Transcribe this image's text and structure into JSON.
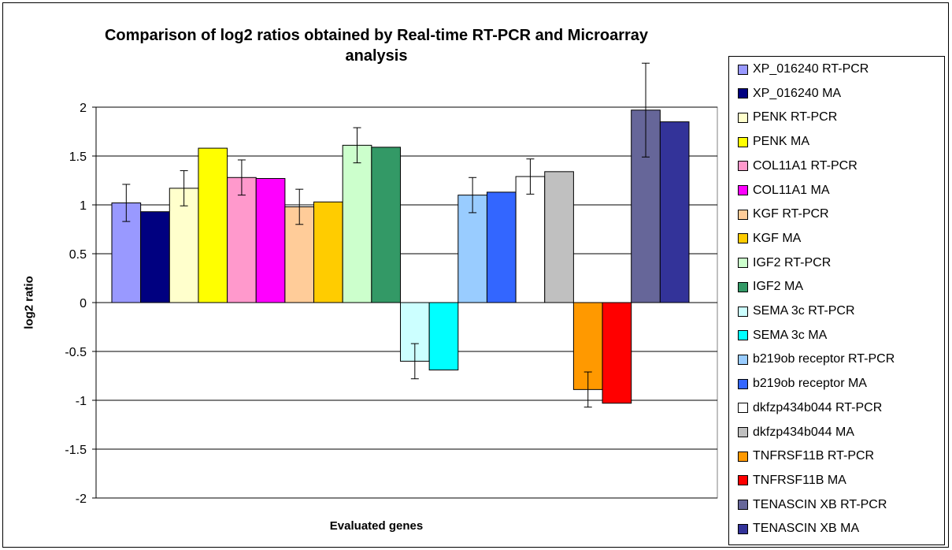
{
  "chart_data": {
    "type": "bar",
    "title": "Comparison of log2 ratios obtained by Real-time RT-PCR and Microarray analysis",
    "xlabel": "Evaluated genes",
    "ylabel": "log2 ratio",
    "ylim": [
      -2,
      2
    ],
    "yticks": [
      2,
      1.5,
      1,
      0.5,
      0,
      -0.5,
      -1,
      -1.5,
      -2
    ],
    "grid": true,
    "legend_position": "right",
    "series": [
      {
        "name": "XP_016240 RT-PCR",
        "value": 1.02,
        "error": 0.19,
        "color": "#9999ff"
      },
      {
        "name": "XP_016240 MA",
        "value": 0.93,
        "color": "#000080"
      },
      {
        "name": "PENK RT-PCR",
        "value": 1.17,
        "error": 0.18,
        "color": "#ffffcc"
      },
      {
        "name": "PENK MA",
        "value": 1.58,
        "color": "#ffff00"
      },
      {
        "name": "COL11A1 RT-PCR",
        "value": 1.28,
        "error": 0.18,
        "color": "#ff99cc"
      },
      {
        "name": "COL11A1 MA",
        "value": 1.27,
        "color": "#ff00ff"
      },
      {
        "name": "KGF RT-PCR",
        "value": 0.98,
        "error": 0.18,
        "color": "#ffcc99"
      },
      {
        "name": "KGF MA",
        "value": 1.03,
        "color": "#ffcc00"
      },
      {
        "name": "IGF2 RT-PCR",
        "value": 1.61,
        "error": 0.18,
        "color": "#ccffcc"
      },
      {
        "name": "IGF2 MA",
        "value": 1.59,
        "color": "#339966"
      },
      {
        "name": "SEMA 3c RT-PCR",
        "value": -0.6,
        "error": 0.18,
        "color": "#ccffff"
      },
      {
        "name": "SEMA 3c MA",
        "value": -0.69,
        "color": "#00ffff"
      },
      {
        "name": "b219ob receptor RT-PCR",
        "value": 1.1,
        "error": 0.18,
        "color": "#99ccff"
      },
      {
        "name": "b219ob receptor MA",
        "value": 1.13,
        "color": "#3366ff"
      },
      {
        "name": "dkfzp434b044 RT-PCR",
        "value": 1.29,
        "error": 0.18,
        "color": "#ffffff"
      },
      {
        "name": "dkfzp434b044 MA",
        "value": 1.34,
        "color": "#c0c0c0"
      },
      {
        "name": "TNFRSF11B RT-PCR",
        "value": -0.89,
        "error": 0.18,
        "color": "#ff9900"
      },
      {
        "name": "TNFRSF11B MA",
        "value": -1.03,
        "color": "#ff0000"
      },
      {
        "name": "TENASCIN XB RT-PCR",
        "value": 1.97,
        "error": 0.48,
        "color": "#666699"
      },
      {
        "name": "TENASCIN XB MA",
        "value": 1.85,
        "color": "#333399"
      }
    ]
  }
}
